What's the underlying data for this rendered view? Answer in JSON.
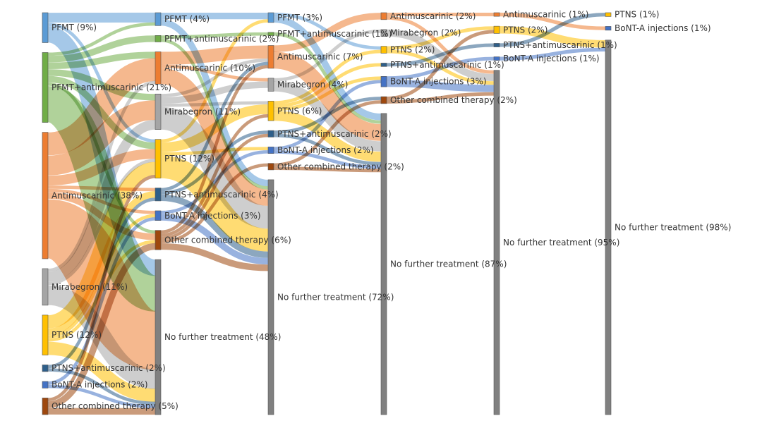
{
  "colors": {
    "PFMT": "#5b9bd5",
    "PFMT+antimuscarinic": "#70ad47",
    "Antimuscarinic": "#ed7d31",
    "Mirabegron": "#a5a5a5",
    "PTNS": "#ffc000",
    "PTNS+antimuscarinic": "#2e5f8a",
    "BoNT-A injections": "#4472c4",
    "Other combined therapy": "#9e480e",
    "No further treatment": "#808080"
  },
  "chart_data": {
    "type": "sankey",
    "columns": [
      {
        "stage": 1,
        "nodes": [
          {
            "id": "c0-PFMT",
            "category": "PFMT",
            "label": "PFMT (9%)",
            "value": 9
          },
          {
            "id": "c0-PFMTam",
            "category": "PFMT+antimuscarinic",
            "label": "PFMT+antimuscarinic (21%)",
            "value": 21
          },
          {
            "id": "c0-AM",
            "category": "Antimuscarinic",
            "label": "Antimuscarinic (38%)",
            "value": 38
          },
          {
            "id": "c0-MIR",
            "category": "Mirabegron",
            "label": "Mirabegron (11%)",
            "value": 11
          },
          {
            "id": "c0-PTNS",
            "category": "PTNS",
            "label": "PTNS (12%)",
            "value": 12
          },
          {
            "id": "c0-PTNSam",
            "category": "PTNS+antimuscarinic",
            "label": "PTNS+antimuscarinic (2%)",
            "value": 2
          },
          {
            "id": "c0-BONT",
            "category": "BoNT-A injections",
            "label": "BoNT-A injections (2%)",
            "value": 2
          },
          {
            "id": "c0-OTH",
            "category": "Other combined therapy",
            "label": "Other combined therapy (5%)",
            "value": 5
          }
        ]
      },
      {
        "stage": 2,
        "nodes": [
          {
            "id": "c1-PFMT",
            "category": "PFMT",
            "label": "PFMT (4%)",
            "value": 4
          },
          {
            "id": "c1-PFMTam",
            "category": "PFMT+antimuscarinic",
            "label": "PFMT+antimuscarinic (2%)",
            "value": 2
          },
          {
            "id": "c1-AM",
            "category": "Antimuscarinic",
            "label": "Antimuscarinic (10%)",
            "value": 10
          },
          {
            "id": "c1-MIR",
            "category": "Mirabegron",
            "label": "Mirabegron (11%)",
            "value": 11
          },
          {
            "id": "c1-PTNS",
            "category": "PTNS",
            "label": "PTNS (12%)",
            "value": 12
          },
          {
            "id": "c1-PTNSam",
            "category": "PTNS+antimuscarinic",
            "label": "PTNS+antimuscarinic (4%)",
            "value": 4
          },
          {
            "id": "c1-BONT",
            "category": "BoNT-A injections",
            "label": "BoNT-A injections (3%)",
            "value": 3
          },
          {
            "id": "c1-OTH",
            "category": "Other combined therapy",
            "label": "Other combined therapy (6%)",
            "value": 6
          },
          {
            "id": "c1-NFT",
            "category": "No further treatment",
            "label": "No further treatment (48%)",
            "value": 48
          }
        ]
      },
      {
        "stage": 3,
        "nodes": [
          {
            "id": "c2-PFMT",
            "category": "PFMT",
            "label": "PFMT (3%)",
            "value": 3
          },
          {
            "id": "c2-PFMTam",
            "category": "PFMT+antimuscarinic",
            "label": "PFMT+antimuscarinic (1%)",
            "value": 1
          },
          {
            "id": "c2-AM",
            "category": "Antimuscarinic",
            "label": "Antimuscarinic (7%)",
            "value": 7
          },
          {
            "id": "c2-MIR",
            "category": "Mirabegron",
            "label": "Mirabegron (4%)",
            "value": 4
          },
          {
            "id": "c2-PTNS",
            "category": "PTNS",
            "label": "PTNS (6%)",
            "value": 6
          },
          {
            "id": "c2-PTNSam",
            "category": "PTNS+antimuscarinic",
            "label": "PTNS+antimuscarinic (2%)",
            "value": 2
          },
          {
            "id": "c2-BONT",
            "category": "BoNT-A injections",
            "label": "BoNT-A injections (2%)",
            "value": 2
          },
          {
            "id": "c2-OTH",
            "category": "Other combined therapy",
            "label": "Other combined therapy (2%)",
            "value": 2
          },
          {
            "id": "c2-NFT",
            "category": "No further treatment",
            "label": "No further treatment (72%)",
            "value": 72
          }
        ]
      },
      {
        "stage": 4,
        "nodes": [
          {
            "id": "c3-AM",
            "category": "Antimuscarinic",
            "label": "Antimuscarinic (2%)",
            "value": 2
          },
          {
            "id": "c3-MIR",
            "category": "Mirabegron",
            "label": "Mirabegron (2%)",
            "value": 2
          },
          {
            "id": "c3-PTNS",
            "category": "PTNS",
            "label": "PTNS (2%)",
            "value": 2
          },
          {
            "id": "c3-PTNSam",
            "category": "PTNS+antimuscarinic",
            "label": "PTNS+antimuscarinic (1%)",
            "value": 1
          },
          {
            "id": "c3-BONT",
            "category": "BoNT-A injections",
            "label": "BoNT-A injections (3%)",
            "value": 3
          },
          {
            "id": "c3-OTH",
            "category": "Other combined therapy",
            "label": "Other combined therapy (2%)",
            "value": 2
          },
          {
            "id": "c3-NFT",
            "category": "No further treatment",
            "label": "No further treatment (87%)",
            "value": 87
          }
        ]
      },
      {
        "stage": 5,
        "nodes": [
          {
            "id": "c4-AM",
            "category": "Antimuscarinic",
            "label": "Antimuscarinic (1%)",
            "value": 1
          },
          {
            "id": "c4-PTNS",
            "category": "PTNS",
            "label": "PTNS (2%)",
            "value": 2
          },
          {
            "id": "c4-PTNSam",
            "category": "PTNS+antimuscarinic",
            "label": "PTNS+antimuscarinic (1%)",
            "value": 1
          },
          {
            "id": "c4-BONT",
            "category": "BoNT-A injections",
            "label": "BoNT-A injections (1%)",
            "value": 1
          },
          {
            "id": "c4-NFT",
            "category": "No further treatment",
            "label": "No further treatment (95%)",
            "value": 95
          }
        ]
      },
      {
        "stage": 6,
        "nodes": [
          {
            "id": "c5-PTNS",
            "category": "PTNS",
            "label": "PTNS (1%)",
            "value": 1
          },
          {
            "id": "c5-BONT",
            "category": "BoNT-A injections",
            "label": "BoNT-A injections (1%)",
            "value": 1
          },
          {
            "id": "c5-NFT",
            "category": "No further treatment",
            "label": "No further treatment (98%)",
            "value": 98
          }
        ]
      }
    ],
    "links": [
      {
        "source": "c0-PFMT",
        "target": "c1-PFMT",
        "value": 3
      },
      {
        "source": "c0-PFMT",
        "target": "c1-PTNS",
        "value": 1
      },
      {
        "source": "c0-PFMT",
        "target": "c1-NFT",
        "value": 5
      },
      {
        "source": "c0-PFMTam",
        "target": "c1-PFMT",
        "value": 1
      },
      {
        "source": "c0-PFMTam",
        "target": "c1-PFMTam",
        "value": 2
      },
      {
        "source": "c0-PFMTam",
        "target": "c1-AM",
        "value": 2
      },
      {
        "source": "c0-PFMTam",
        "target": "c1-MIR",
        "value": 2
      },
      {
        "source": "c0-PFMTam",
        "target": "c1-PTNS",
        "value": 2
      },
      {
        "source": "c0-PFMTam",
        "target": "c1-OTH",
        "value": 1
      },
      {
        "source": "c0-PFMTam",
        "target": "c1-NFT",
        "value": 11
      },
      {
        "source": "c0-AM",
        "target": "c1-AM",
        "value": 7
      },
      {
        "source": "c0-AM",
        "target": "c1-MIR",
        "value": 6
      },
      {
        "source": "c0-AM",
        "target": "c1-PTNS",
        "value": 3
      },
      {
        "source": "c0-AM",
        "target": "c1-PTNSam",
        "value": 1
      },
      {
        "source": "c0-AM",
        "target": "c1-BONT",
        "value": 1
      },
      {
        "source": "c0-AM",
        "target": "c1-OTH",
        "value": 2
      },
      {
        "source": "c0-AM",
        "target": "c1-NFT",
        "value": 18
      },
      {
        "source": "c0-MIR",
        "target": "c1-AM",
        "value": 1
      },
      {
        "source": "c0-MIR",
        "target": "c1-MIR",
        "value": 3
      },
      {
        "source": "c0-MIR",
        "target": "c1-PTNS",
        "value": 1
      },
      {
        "source": "c0-MIR",
        "target": "c1-NFT",
        "value": 6
      },
      {
        "source": "c0-PTNS",
        "target": "c1-PTNS",
        "value": 4
      },
      {
        "source": "c0-PTNS",
        "target": "c1-PTNSam",
        "value": 2
      },
      {
        "source": "c0-PTNS",
        "target": "c1-BONT",
        "value": 1
      },
      {
        "source": "c0-PTNS",
        "target": "c1-OTH",
        "value": 1
      },
      {
        "source": "c0-PTNS",
        "target": "c1-NFT",
        "value": 4
      },
      {
        "source": "c0-PTNSam",
        "target": "c1-PTNSam",
        "value": 1
      },
      {
        "source": "c0-PTNSam",
        "target": "c1-NFT",
        "value": 1
      },
      {
        "source": "c0-BONT",
        "target": "c1-BONT",
        "value": 1
      },
      {
        "source": "c0-BONT",
        "target": "c1-NFT",
        "value": 1
      },
      {
        "source": "c0-OTH",
        "target": "c1-PTNS",
        "value": 1
      },
      {
        "source": "c0-OTH",
        "target": "c1-OTH",
        "value": 2
      },
      {
        "source": "c0-OTH",
        "target": "c1-NFT",
        "value": 2
      },
      {
        "source": "c1-PFMT",
        "target": "c2-PFMT",
        "value": 2
      },
      {
        "source": "c1-PFMT",
        "target": "c2-NFT",
        "value": 2
      },
      {
        "source": "c1-PFMTam",
        "target": "c2-PFMTam",
        "value": 1
      },
      {
        "source": "c1-PFMTam",
        "target": "c2-NFT",
        "value": 1
      },
      {
        "source": "c1-AM",
        "target": "c2-AM",
        "value": 4
      },
      {
        "source": "c1-AM",
        "target": "c2-MIR",
        "value": 1
      },
      {
        "source": "c1-AM",
        "target": "c2-NFT",
        "value": 5
      },
      {
        "source": "c1-MIR",
        "target": "c2-AM",
        "value": 1
      },
      {
        "source": "c1-MIR",
        "target": "c2-MIR",
        "value": 2
      },
      {
        "source": "c1-MIR",
        "target": "c2-PTNS",
        "value": 1
      },
      {
        "source": "c1-MIR",
        "target": "c2-NFT",
        "value": 7
      },
      {
        "source": "c1-PTNS",
        "target": "c2-PFMT",
        "value": 1
      },
      {
        "source": "c1-PTNS",
        "target": "c2-PTNS",
        "value": 3
      },
      {
        "source": "c1-PTNS",
        "target": "c2-BONT",
        "value": 1
      },
      {
        "source": "c1-PTNS",
        "target": "c2-NFT",
        "value": 7
      },
      {
        "source": "c1-PTNSam",
        "target": "c2-AM",
        "value": 1
      },
      {
        "source": "c1-PTNSam",
        "target": "c2-PTNSam",
        "value": 1
      },
      {
        "source": "c1-PTNSam",
        "target": "c2-NFT",
        "value": 2
      },
      {
        "source": "c1-BONT",
        "target": "c2-BONT",
        "value": 1
      },
      {
        "source": "c1-BONT",
        "target": "c2-NFT",
        "value": 2
      },
      {
        "source": "c1-OTH",
        "target": "c2-AM",
        "value": 1
      },
      {
        "source": "c1-OTH",
        "target": "c2-PTNS",
        "value": 1
      },
      {
        "source": "c1-OTH",
        "target": "c2-PTNSam",
        "value": 1
      },
      {
        "source": "c1-OTH",
        "target": "c2-OTH",
        "value": 1
      },
      {
        "source": "c1-OTH",
        "target": "c2-NFT",
        "value": 2
      },
      {
        "source": "c1-NFT",
        "target": "c2-MIR",
        "value": 1
      },
      {
        "source": "c1-NFT",
        "target": "c2-PTNS",
        "value": 1
      },
      {
        "source": "c1-NFT",
        "target": "c2-OTH",
        "value": 1
      },
      {
        "source": "c1-NFT",
        "target": "c2-NFT",
        "value": 45
      },
      {
        "source": "c2-PFMT",
        "target": "c3-PTNS",
        "value": 1
      },
      {
        "source": "c2-PFMT",
        "target": "c3-NFT",
        "value": 2
      },
      {
        "source": "c2-PFMTam",
        "target": "c3-NFT",
        "value": 1
      },
      {
        "source": "c2-AM",
        "target": "c3-AM",
        "value": 2
      },
      {
        "source": "c2-AM",
        "target": "c3-NFT",
        "value": 5
      },
      {
        "source": "c2-MIR",
        "target": "c3-MIR",
        "value": 1
      },
      {
        "source": "c2-MIR",
        "target": "c3-NFT",
        "value": 3
      },
      {
        "source": "c2-PTNS",
        "target": "c3-PTNS",
        "value": 1
      },
      {
        "source": "c2-PTNS",
        "target": "c3-PTNSam",
        "value": 1
      },
      {
        "source": "c2-PTNS",
        "target": "c3-BONT",
        "value": 1
      },
      {
        "source": "c2-PTNS",
        "target": "c3-NFT",
        "value": 3
      },
      {
        "source": "c2-PTNSam",
        "target": "c3-OTH",
        "value": 1
      },
      {
        "source": "c2-PTNSam",
        "target": "c3-NFT",
        "value": 1
      },
      {
        "source": "c2-BONT",
        "target": "c3-BONT",
        "value": 1
      },
      {
        "source": "c2-BONT",
        "target": "c3-NFT",
        "value": 1
      },
      {
        "source": "c2-OTH",
        "target": "c3-OTH",
        "value": 1
      },
      {
        "source": "c2-OTH",
        "target": "c3-NFT",
        "value": 1
      },
      {
        "source": "c2-NFT",
        "target": "c3-MIR",
        "value": 1
      },
      {
        "source": "c2-NFT",
        "target": "c3-BONT",
        "value": 1
      },
      {
        "source": "c2-NFT",
        "target": "c3-NFT",
        "value": 70
      },
      {
        "source": "c3-AM",
        "target": "c4-AM",
        "value": 1
      },
      {
        "source": "c3-AM",
        "target": "c4-NFT",
        "value": 1
      },
      {
        "source": "c3-MIR",
        "target": "c4-NFT",
        "value": 2
      },
      {
        "source": "c3-PTNS",
        "target": "c4-PTNS",
        "value": 1
      },
      {
        "source": "c3-PTNS",
        "target": "c4-NFT",
        "value": 1
      },
      {
        "source": "c3-PTNSam",
        "target": "c4-PTNSam",
        "value": 1
      },
      {
        "source": "c3-BONT",
        "target": "c4-BONT",
        "value": 1
      },
      {
        "source": "c3-BONT",
        "target": "c4-NFT",
        "value": 2
      },
      {
        "source": "c3-OTH",
        "target": "c4-PTNS",
        "value": 1
      },
      {
        "source": "c3-OTH",
        "target": "c4-NFT",
        "value": 1
      },
      {
        "source": "c3-NFT",
        "target": "c4-NFT",
        "value": 87
      },
      {
        "source": "c4-AM",
        "target": "c5-BONT",
        "value": 1
      },
      {
        "source": "c4-PTNS",
        "target": "c5-NFT",
        "value": 2
      },
      {
        "source": "c4-PTNSam",
        "target": "c5-PTNS",
        "value": 1
      },
      {
        "source": "c4-BONT",
        "target": "c5-NFT",
        "value": 1
      },
      {
        "source": "c4-NFT",
        "target": "c5-NFT",
        "value": 95
      }
    ]
  }
}
